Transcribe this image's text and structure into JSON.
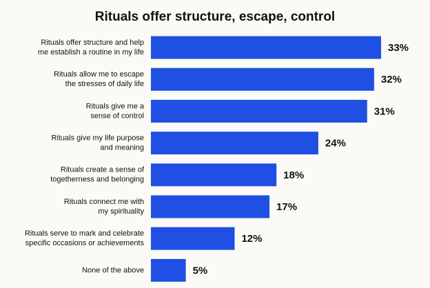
{
  "chart_data": {
    "type": "bar",
    "orientation": "horizontal",
    "title": "Rituals offer structure, escape, control",
    "categories": [
      [
        "Rituals offer structure and help",
        "me establish a routine in my life"
      ],
      [
        "Rituals allow me to escape",
        "the stresses of daily life"
      ],
      [
        "Rituals give me a",
        "sense of control"
      ],
      [
        "Rituals give my life purpose",
        "and meaning"
      ],
      [
        "Rituals create a sense of",
        "togetherness and belonging"
      ],
      [
        "Rituals connect me with",
        "my spirituality"
      ],
      [
        "Rituals serve to mark and celebrate",
        "specific occasions or achievements"
      ],
      [
        "None of the above"
      ]
    ],
    "values": [
      33,
      32,
      31,
      24,
      18,
      17,
      12,
      5
    ],
    "value_labels": [
      "33%",
      "32%",
      "31%",
      "24%",
      "18%",
      "17%",
      "12%",
      "5%"
    ],
    "color": "#1f4fe3"
  }
}
